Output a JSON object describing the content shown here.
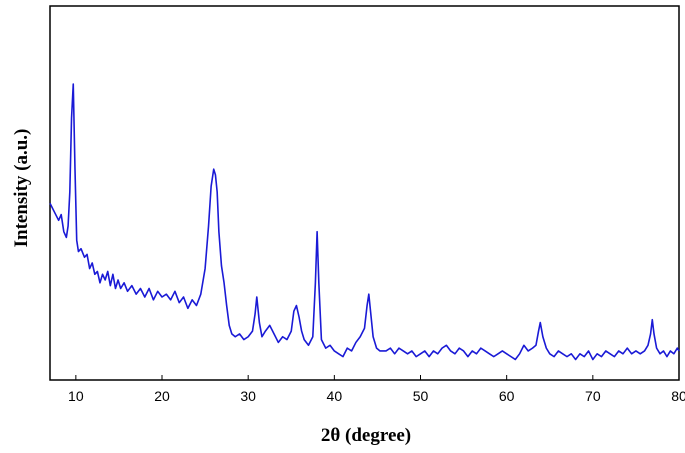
{
  "chart_data": {
    "type": "line",
    "title": "",
    "xlabel": "2θ (degree)",
    "ylabel": "Intensity (a.u.)",
    "xlim": [
      7,
      80
    ],
    "ylim": [
      0,
      1
    ],
    "x_ticks": [
      10,
      20,
      30,
      40,
      50,
      60,
      70,
      80
    ],
    "y_ticks": [],
    "grid": false,
    "legend": "none",
    "line_color": "#1a1ad6",
    "series": [
      {
        "x": [
          7.0,
          7.5,
          8.0,
          8.3,
          8.6,
          8.9,
          9.1,
          9.3,
          9.5,
          9.7,
          9.9,
          10.1,
          10.3,
          10.6,
          11.0,
          11.3,
          11.6,
          11.9,
          12.2,
          12.5,
          12.8,
          13.1,
          13.4,
          13.7,
          14.0,
          14.3,
          14.6,
          14.9,
          15.2,
          15.6,
          16.0,
          16.5,
          17.0,
          17.5,
          18.0,
          18.5,
          19.0,
          19.5,
          20.0,
          20.5,
          21.0,
          21.5,
          22.0,
          22.5,
          23.0,
          23.5,
          24.0,
          24.5,
          25.0,
          25.4,
          25.7,
          26.0,
          26.2,
          26.4,
          26.6,
          26.9,
          27.2,
          27.5,
          27.8,
          28.1,
          28.5,
          29.0,
          29.5,
          30.0,
          30.5,
          30.8,
          31.0,
          31.3,
          31.6,
          32.0,
          32.5,
          33.0,
          33.5,
          34.0,
          34.5,
          35.0,
          35.3,
          35.6,
          35.9,
          36.2,
          36.5,
          37.0,
          37.5,
          37.8,
          38.0,
          38.2,
          38.5,
          39.0,
          39.5,
          40.0,
          40.5,
          41.0,
          41.5,
          42.0,
          42.5,
          43.0,
          43.5,
          43.8,
          44.0,
          44.2,
          44.5,
          44.9,
          45.3,
          46.0,
          46.5,
          47.0,
          47.5,
          48.0,
          48.5,
          49.0,
          49.5,
          50.0,
          50.5,
          51.0,
          51.5,
          52.0,
          52.5,
          53.0,
          53.5,
          54.0,
          54.5,
          55.0,
          55.5,
          56.0,
          56.5,
          57.0,
          57.5,
          58.0,
          58.5,
          59.0,
          59.5,
          60.0,
          60.5,
          61.0,
          61.5,
          62.0,
          62.5,
          63.0,
          63.4,
          63.7,
          63.9,
          64.2,
          64.6,
          65.0,
          65.5,
          66.0,
          66.5,
          67.0,
          67.5,
          68.0,
          68.5,
          69.0,
          69.5,
          70.0,
          70.5,
          71.0,
          71.5,
          72.0,
          72.5,
          73.0,
          73.5,
          74.0,
          74.5,
          75.0,
          75.5,
          76.0,
          76.4,
          76.7,
          76.9,
          77.1,
          77.4,
          77.8,
          78.2,
          78.6,
          79.0,
          79.4,
          79.8,
          80.0
        ],
        "y": [
          0.58,
          0.55,
          0.52,
          0.54,
          0.48,
          0.46,
          0.5,
          0.62,
          0.88,
          1.0,
          0.7,
          0.45,
          0.41,
          0.42,
          0.39,
          0.4,
          0.35,
          0.37,
          0.33,
          0.34,
          0.3,
          0.33,
          0.31,
          0.34,
          0.29,
          0.33,
          0.28,
          0.31,
          0.28,
          0.3,
          0.27,
          0.29,
          0.26,
          0.28,
          0.25,
          0.28,
          0.24,
          0.27,
          0.25,
          0.26,
          0.24,
          0.27,
          0.23,
          0.25,
          0.21,
          0.24,
          0.22,
          0.26,
          0.35,
          0.5,
          0.64,
          0.7,
          0.68,
          0.62,
          0.48,
          0.36,
          0.3,
          0.22,
          0.15,
          0.12,
          0.11,
          0.12,
          0.1,
          0.11,
          0.13,
          0.19,
          0.25,
          0.16,
          0.11,
          0.13,
          0.15,
          0.12,
          0.09,
          0.11,
          0.1,
          0.13,
          0.2,
          0.22,
          0.18,
          0.13,
          0.1,
          0.08,
          0.11,
          0.3,
          0.48,
          0.3,
          0.1,
          0.07,
          0.08,
          0.06,
          0.05,
          0.04,
          0.07,
          0.06,
          0.09,
          0.11,
          0.14,
          0.22,
          0.26,
          0.2,
          0.11,
          0.07,
          0.06,
          0.06,
          0.07,
          0.05,
          0.07,
          0.06,
          0.05,
          0.06,
          0.04,
          0.05,
          0.06,
          0.04,
          0.06,
          0.05,
          0.07,
          0.08,
          0.06,
          0.05,
          0.07,
          0.06,
          0.04,
          0.06,
          0.05,
          0.07,
          0.06,
          0.05,
          0.04,
          0.05,
          0.06,
          0.05,
          0.04,
          0.03,
          0.05,
          0.08,
          0.06,
          0.07,
          0.08,
          0.13,
          0.16,
          0.11,
          0.07,
          0.05,
          0.04,
          0.06,
          0.05,
          0.04,
          0.05,
          0.03,
          0.05,
          0.04,
          0.06,
          0.03,
          0.05,
          0.04,
          0.06,
          0.05,
          0.04,
          0.06,
          0.05,
          0.07,
          0.05,
          0.06,
          0.05,
          0.06,
          0.08,
          0.12,
          0.17,
          0.12,
          0.07,
          0.05,
          0.06,
          0.04,
          0.06,
          0.05,
          0.07,
          0.06
        ]
      }
    ]
  }
}
